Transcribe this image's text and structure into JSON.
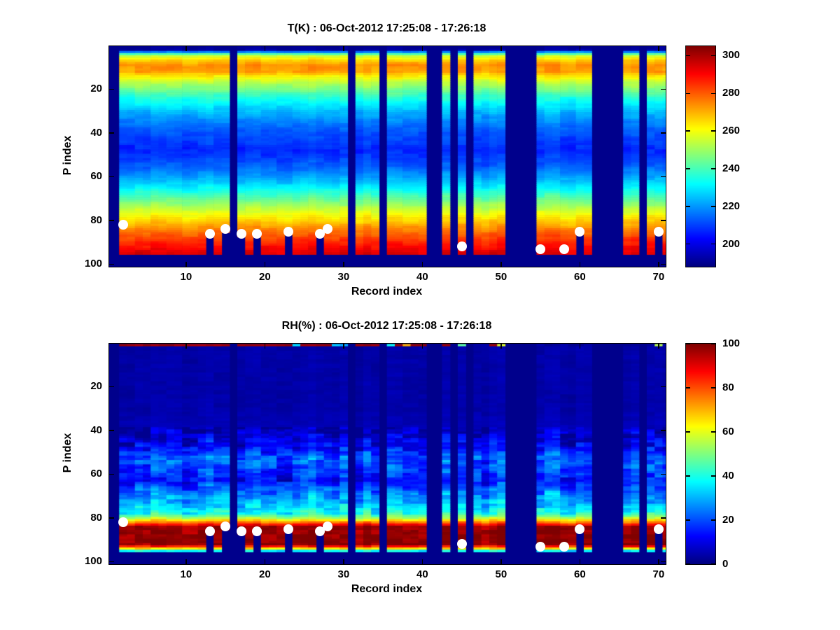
{
  "figure": {
    "background": "#ffffff",
    "text_color": "#000000",
    "panel_border_color": "#000000",
    "marker_color": "#ffffff"
  },
  "chart_data": [
    {
      "type": "heatmap",
      "title": "T(K) : 06-Oct-2012 17:25:08 - 17:26:18",
      "xlabel": "Record index",
      "ylabel": "P index",
      "x_ticks": [
        10,
        20,
        30,
        40,
        50,
        60,
        70
      ],
      "y_ticks": [
        20,
        40,
        60,
        80,
        100
      ],
      "x_range": [
        1,
        71
      ],
      "y_range": [
        1,
        100
      ],
      "y_axis_reversed": true,
      "colormap": "jet",
      "colorbar": {
        "min": 188,
        "max": 305,
        "ticks": [
          200,
          220,
          240,
          260,
          280,
          300
        ]
      },
      "num_records": 71,
      "num_levels": 100,
      "missing_records": [
        1,
        16,
        31,
        35,
        41,
        42,
        44,
        46,
        51,
        52,
        53,
        54,
        62,
        63,
        64,
        65,
        68
      ],
      "data_bottom_level": 95,
      "vertical_profile": {
        "p": [
          1,
          2,
          3,
          4,
          5,
          7,
          9,
          12,
          14,
          17,
          20,
          24,
          28,
          33,
          40,
          48,
          55,
          60,
          65,
          70,
          75,
          79,
          83,
          87,
          91,
          95
        ],
        "value": [
          190,
          192,
          218,
          242,
          256,
          267,
          274,
          272,
          263,
          253,
          246,
          236,
          228,
          220,
          212,
          207,
          213,
          221,
          231,
          243,
          255,
          264,
          273,
          281,
          288,
          294
        ]
      },
      "noise_profile": [
        [
          101,
          3
        ]
      ],
      "surface_dots": [
        [
          2,
          82
        ],
        [
          13,
          86
        ],
        [
          15,
          84
        ],
        [
          17,
          86
        ],
        [
          19,
          86
        ],
        [
          23,
          85
        ],
        [
          27,
          86
        ],
        [
          28,
          84
        ],
        [
          45,
          92
        ],
        [
          55,
          93
        ],
        [
          58,
          93
        ],
        [
          60,
          85
        ],
        [
          70,
          85
        ]
      ],
      "truncated_records": [
        13,
        15,
        17,
        19,
        23,
        27,
        60,
        70
      ]
    },
    {
      "type": "heatmap",
      "title": "RH(%) : 06-Oct-2012 17:25:08 - 17:26:18",
      "xlabel": "Record index",
      "ylabel": "P index",
      "x_ticks": [
        10,
        20,
        30,
        40,
        50,
        60,
        70
      ],
      "y_ticks": [
        20,
        40,
        60,
        80,
        100
      ],
      "x_range": [
        1,
        71
      ],
      "y_range": [
        1,
        100
      ],
      "y_axis_reversed": true,
      "colormap": "jet",
      "colorbar": {
        "min": 0,
        "max": 100,
        "ticks": [
          0,
          20,
          40,
          60,
          80,
          100
        ]
      },
      "num_records": 71,
      "num_levels": 100,
      "missing_records": [
        1,
        16,
        31,
        35,
        41,
        42,
        44,
        46,
        51,
        52,
        53,
        54,
        62,
        63,
        64,
        65,
        68
      ],
      "data_bottom_level": 95,
      "top_row_value": 97,
      "vertical_profile": {
        "p": [
          1,
          2,
          30,
          40,
          44,
          48,
          52,
          56,
          60,
          63,
          66,
          70,
          74,
          78,
          80,
          82,
          84,
          88,
          92,
          93,
          94,
          95
        ],
        "value": [
          97,
          4,
          4,
          6,
          9,
          13,
          22,
          20,
          17,
          14,
          20,
          27,
          32,
          40,
          55,
          76,
          97,
          99,
          99,
          85,
          65,
          38
        ]
      },
      "noise_profile": [
        [
          38,
          1.5
        ],
        [
          78,
          9
        ],
        [
          101,
          5
        ]
      ],
      "surface_dots": [
        [
          2,
          82
        ],
        [
          13,
          86
        ],
        [
          15,
          84
        ],
        [
          17,
          86
        ],
        [
          19,
          86
        ],
        [
          23,
          85
        ],
        [
          27,
          86
        ],
        [
          28,
          84
        ],
        [
          45,
          92
        ],
        [
          55,
          93
        ],
        [
          58,
          93
        ],
        [
          60,
          85
        ],
        [
          70,
          85
        ]
      ],
      "truncated_records": [
        13,
        15,
        17,
        19,
        23,
        27,
        60,
        70
      ]
    }
  ]
}
